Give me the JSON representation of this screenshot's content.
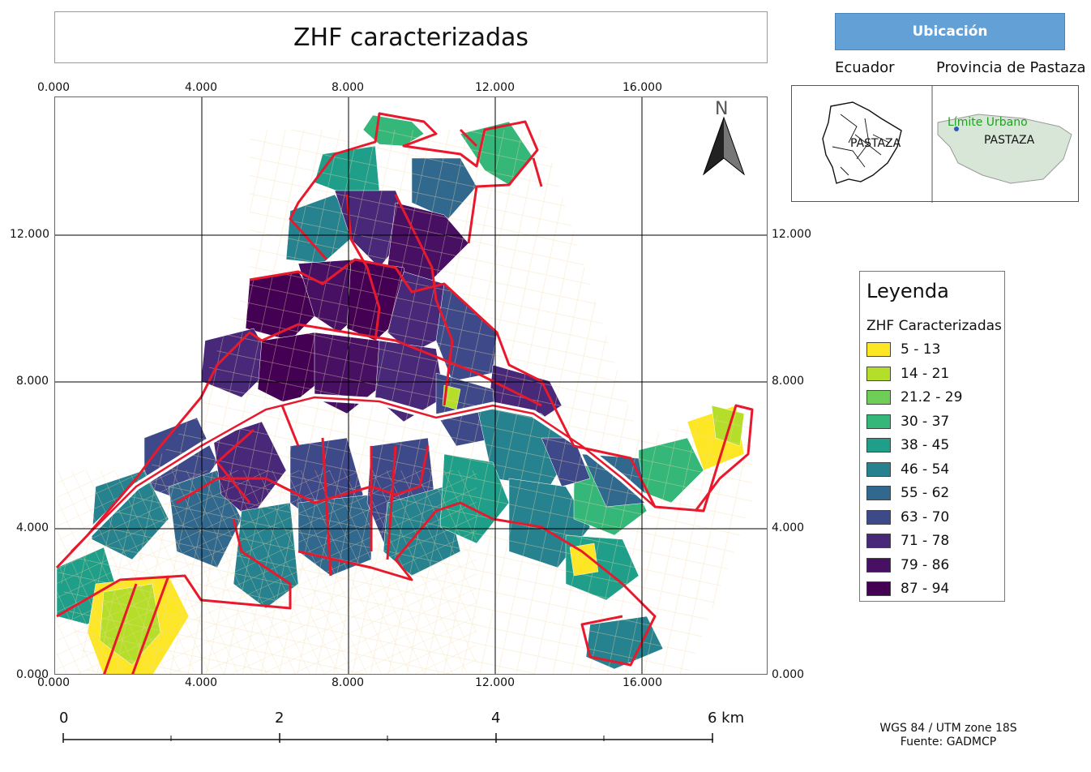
{
  "map": {
    "title": "ZHF caracterizadas",
    "x_ticks": [
      "0.000",
      "4.000",
      "8.000",
      "12.000",
      "16.000"
    ],
    "y_ticks": [
      "12.000",
      "8.000",
      "4.000",
      "0.000"
    ],
    "north_label": "N",
    "boundary_color": "#e8192c"
  },
  "location": {
    "header": "Ubicación",
    "country_label": "Ecuador",
    "province_label": "Provincia de Pastaza",
    "country_inset_text": "PASTAZA",
    "province_inset_text": "PASTAZA",
    "urban_limit_label": "Límite Urbano",
    "urban_limit_color": "#20a020",
    "header_color": "#63a0d6"
  },
  "legend": {
    "title": "Leyenda",
    "subtitle": "ZHF Caracterizadas",
    "classes": [
      {
        "label": "5 - 13",
        "color": "#fde725"
      },
      {
        "label": "14 - 21",
        "color": "#b5de2b"
      },
      {
        "label": "21.2 - 29",
        "color": "#6ece58"
      },
      {
        "label": "30 - 37",
        "color": "#35b779"
      },
      {
        "label": "38 - 45",
        "color": "#1f9e89"
      },
      {
        "label": "46 - 54",
        "color": "#26828e"
      },
      {
        "label": "55 - 62",
        "color": "#31688e"
      },
      {
        "label": "63 - 70",
        "color": "#3e4989"
      },
      {
        "label": "71 - 78",
        "color": "#482878"
      },
      {
        "label": "79 - 86",
        "color": "#471063"
      },
      {
        "label": "87 - 94",
        "color": "#440154"
      }
    ]
  },
  "scale": {
    "labels": [
      "0",
      "2",
      "4",
      "6 km"
    ]
  },
  "credits": {
    "crs": "WGS 84 / UTM zone 18S",
    "source": "Fuente: GADMCP"
  }
}
